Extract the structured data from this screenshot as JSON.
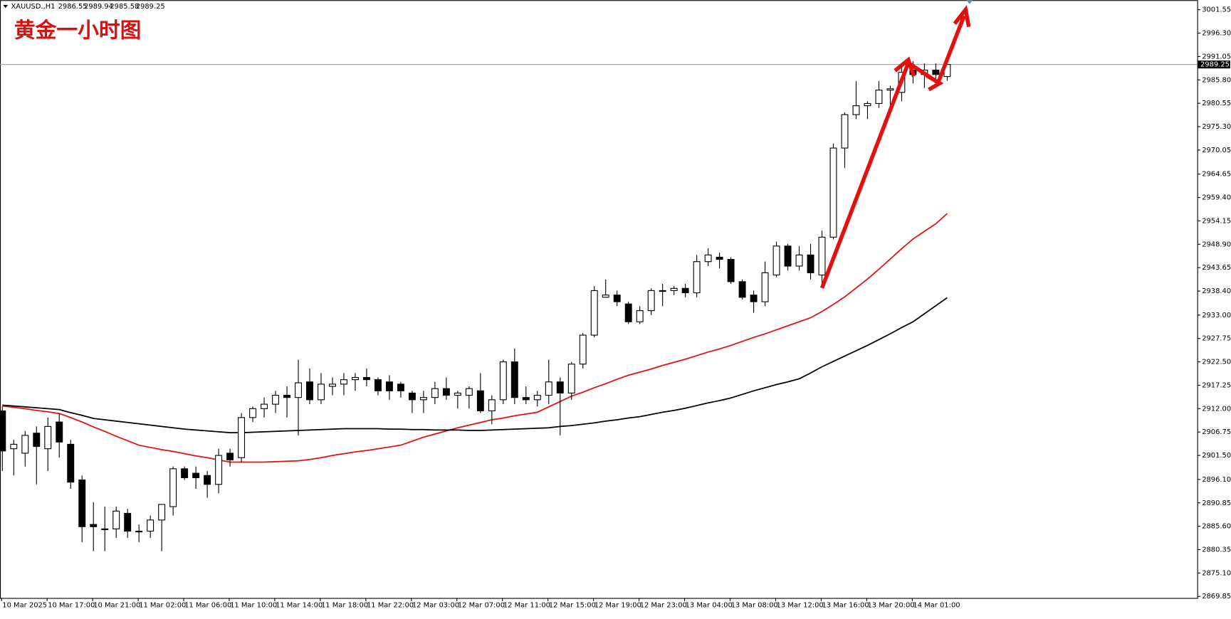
{
  "header": {
    "symbol": "XAUUSD.,H1"
  },
  "chart_data": {
    "type": "candlestick",
    "title": "黄金一小时图",
    "categories": [
      "10 Mar 2025",
      null,
      null,
      null,
      "10 Mar 17:00",
      null,
      null,
      null,
      "10 Mar 21:00",
      null,
      null,
      null,
      "11 Mar 02:00",
      null,
      null,
      null,
      "11 Mar 06:00",
      null,
      null,
      null,
      "11 Mar 10:00",
      null,
      null,
      null,
      "11 Mar 14:00",
      null,
      null,
      null,
      "11 Mar 18:00",
      null,
      null,
      null,
      "11 Mar 22:00",
      null,
      null,
      null,
      "12 Mar 03:00",
      null,
      null,
      null,
      "12 Mar 07:00",
      null,
      null,
      null,
      "12 Mar 11:00",
      null,
      null,
      null,
      "12 Mar 15:00",
      null,
      null,
      null,
      "12 Mar 19:00",
      null,
      null,
      null,
      "12 Mar 23:00",
      null,
      null,
      null,
      "13 Mar 04:00",
      null,
      null,
      null,
      "13 Mar 08:00",
      null,
      null,
      null,
      "13 Mar 12:00",
      null,
      null,
      null,
      "13 Mar 16:00",
      null,
      null,
      null,
      "13 Mar 20:00",
      null,
      null,
      null,
      "14 Mar 01:00",
      null,
      null,
      null
    ],
    "open": [
      2911.5,
      2903,
      2902,
      2906.5,
      2903,
      2909,
      2904,
      2896,
      2886,
      2885,
      2885,
      2888.5,
      2884.5,
      2884.5,
      2887,
      2890,
      2898.5,
      2897.5,
      2897,
      2895,
      2902,
      2901,
      2910,
      2912,
      2913,
      2915,
      2914.5,
      2918,
      2914,
      2917,
      2917.5,
      2918.5,
      2919,
      2918.5,
      2918,
      2917.5,
      2915.5,
      2914,
      2914.5,
      2916.5,
      2915,
      2915,
      2916,
      2911.5,
      2914,
      2922.5,
      2914.5,
      2914,
      2915,
      2918,
      2915.5,
      2922,
      2928.5,
      2937,
      2937.5,
      2935.5,
      2931.5,
      2934,
      2938.5,
      2938.5,
      2939,
      2938,
      2945,
      2946,
      2945.5,
      2940.5,
      2937.5,
      2936,
      2942,
      2948.5,
      2944,
      2946.5,
      2942,
      2950.5,
      2970.5,
      2978,
      2980,
      2980.5,
      2983.5,
      2983,
      2988,
      2987,
      2988,
      2986.55
    ],
    "high": [
      2912.5,
      2905,
      2907,
      2908,
      2910,
      2911,
      2905,
      2897,
      2891,
      2890,
      2890,
      2889.5,
      2886,
      2888,
      2890,
      2899,
      2899,
      2899,
      2898,
      2903,
      2903,
      2911,
      2912.5,
      2914.5,
      2916,
      2917,
      2923,
      2921,
      2920,
      2919,
      2920,
      2920,
      2921,
      2919,
      2919.5,
      2918,
      2916,
      2916,
      2918,
      2919,
      2916,
      2917,
      2920,
      2915,
      2923,
      2925.5,
      2917,
      2916,
      2923,
      2919,
      2922.5,
      2929,
      2939.5,
      2941,
      2938.5,
      2936,
      2935,
      2939,
      2940,
      2939.5,
      2940,
      2946.5,
      2948,
      2947,
      2946,
      2941,
      2938.5,
      2945,
      2949.5,
      2949,
      2948.5,
      2949,
      2952,
      2971.5,
      2978.5,
      2985.5,
      2981,
      2985.5,
      2984.5,
      2989.5,
      2990,
      2989.5,
      2989.5,
      2989.94
    ],
    "low": [
      2898,
      2897,
      2899,
      2895,
      2898,
      2901,
      2894,
      2882,
      2880,
      2880,
      2883,
      2883,
      2882,
      2883,
      2880,
      2888,
      2896,
      2894,
      2892,
      2893,
      2899,
      2900,
      2909,
      2910,
      2911,
      2910,
      2906,
      2913,
      2913,
      2915,
      2915,
      2916,
      2917,
      2915,
      2914,
      2914.5,
      2911,
      2911,
      2913,
      2914,
      2912,
      2912,
      2911,
      2908.5,
      2913,
      2913,
      2913,
      2912.5,
      2913,
      2906,
      2914,
      2921,
      2928,
      2937,
      2935,
      2931,
      2931,
      2933,
      2935,
      2937.5,
      2937,
      2937,
      2944,
      2943.5,
      2940,
      2936.5,
      2933.5,
      2935,
      2941.5,
      2943,
      2943,
      2941,
      2939.5,
      2950,
      2966,
      2977,
      2977,
      2979.5,
      2980,
      2981,
      2985,
      2984,
      2985.5,
      2985.58
    ],
    "close": [
      2902.5,
      2904,
      2906,
      2903.5,
      2908,
      2904.5,
      2895.5,
      2885.5,
      2885.5,
      2885,
      2889,
      2884.5,
      2884.5,
      2887,
      2890.5,
      2898.5,
      2896.5,
      2896.5,
      2895,
      2901.5,
      2900.5,
      2910,
      2912,
      2913,
      2915,
      2914.5,
      2917.8,
      2914,
      2917.5,
      2917.5,
      2918.5,
      2919,
      2918.5,
      2916,
      2916,
      2916,
      2914,
      2914.5,
      2916.5,
      2915,
      2915.5,
      2916.5,
      2911.5,
      2914,
      2922.5,
      2914.5,
      2914,
      2915,
      2918,
      2915.5,
      2922,
      2928.5,
      2938.5,
      2937.5,
      2936,
      2931.5,
      2934,
      2938.5,
      2938.5,
      2939,
      2938,
      2945,
      2946.5,
      2945.5,
      2940.5,
      2937,
      2936,
      2942.5,
      2948.5,
      2944,
      2946.5,
      2942.5,
      2950.5,
      2970.5,
      2978,
      2980,
      2980.5,
      2983.5,
      2983.8,
      2987.5,
      2987,
      2988,
      2987,
      2989.25
    ],
    "moving_averages": [
      {
        "color": "#e31010",
        "values": [
          2912.6,
          2912.3,
          2912,
          2911.6,
          2911.3,
          2910.9,
          2910,
          2909,
          2907.9,
          2906.9,
          2905.8,
          2904.8,
          2903.8,
          2903.3,
          2902.8,
          2902.4,
          2901.9,
          2901.4,
          2901,
          2900.5,
          2900,
          2900,
          2900,
          2900,
          2900.1,
          2900.2,
          2900.3,
          2900.6,
          2901,
          2901.5,
          2901.9,
          2902.3,
          2902.6,
          2903,
          2903.4,
          2903.8,
          2904.7,
          2905.6,
          2906.3,
          2907,
          2907.7,
          2908.3,
          2908.9,
          2909.5,
          2909.9,
          2910.4,
          2910.8,
          2911.2,
          2912.4,
          2913.6,
          2914.8,
          2915.7,
          2916.7,
          2917.6,
          2918.6,
          2919.5,
          2920.2,
          2920.9,
          2921.7,
          2922.4,
          2923.1,
          2923.9,
          2924.7,
          2925.4,
          2926.2,
          2927.1,
          2928,
          2928.8,
          2929.7,
          2930.6,
          2931.5,
          2932.4,
          2933.8,
          2935.4,
          2937.1,
          2939.1,
          2941.1,
          2943.3,
          2945.6,
          2947.9,
          2950.1,
          2951.8,
          2953.5,
          2955.8
        ]
      },
      {
        "color": "#000000",
        "values": [
          2912.8,
          2912.6,
          2912.4,
          2912.2,
          2912,
          2911.8,
          2911.1,
          2910.5,
          2909.8,
          2909.5,
          2909.2,
          2908.9,
          2908.6,
          2908.3,
          2908,
          2907.7,
          2907.4,
          2907.2,
          2907,
          2906.8,
          2906.6,
          2906.6,
          2906.7,
          2906.8,
          2906.9,
          2907,
          2907.1,
          2907.2,
          2907.3,
          2907.4,
          2907.5,
          2907.5,
          2907.5,
          2907.5,
          2907.4,
          2907.4,
          2907.3,
          2907.3,
          2907.2,
          2907.2,
          2907.2,
          2907.1,
          2907.1,
          2907.2,
          2907.3,
          2907.4,
          2907.5,
          2907.6,
          2907.7,
          2908,
          2908.2,
          2908.5,
          2908.8,
          2909.2,
          2909.5,
          2909.9,
          2910.2,
          2910.7,
          2911.2,
          2911.6,
          2912.1,
          2912.7,
          2913.3,
          2913.8,
          2914.4,
          2915.2,
          2916,
          2916.7,
          2917.4,
          2918,
          2918.7,
          2920,
          2921.4,
          2922.6,
          2923.8,
          2925,
          2926.2,
          2927.5,
          2928.8,
          2930.2,
          2931.5,
          2933.3,
          2935.1,
          2936.9
        ]
      }
    ],
    "ylim": [
      2869.5,
      3003.7
    ],
    "yticks": [
      3001.55,
      {
        "value": 2996.3,
        "label": "2996.30"
      },
      2991.05,
      {
        "value": 2985.8,
        "label": "2985.80"
      },
      2980.55,
      {
        "value": 2975.3,
        "label": "2975.30"
      },
      2970.05,
      2964.65,
      {
        "value": 2959.4,
        "label": "2959.40"
      },
      2954.15,
      {
        "value": 2948.9,
        "label": "2948.90"
      },
      2943.65,
      {
        "value": 2938.4,
        "label": "2938.40"
      },
      {
        "value": 2933,
        "label": "2933.00"
      },
      2927.75,
      {
        "value": 2922.5,
        "label": "2922.50"
      },
      2917.25,
      {
        "value": 2912,
        "label": "2912.00"
      },
      2906.75,
      {
        "value": 2901.5,
        "label": "2901.50"
      },
      {
        "value": 2896.1,
        "label": "2896.10"
      },
      2890.85,
      {
        "value": 2885.6,
        "label": "2885.60"
      },
      2880.35,
      {
        "value": 2875.1,
        "label": "2875.10"
      },
      2869.85
    ],
    "up_color": "#ffffff",
    "down_color": "#000000"
  }
}
